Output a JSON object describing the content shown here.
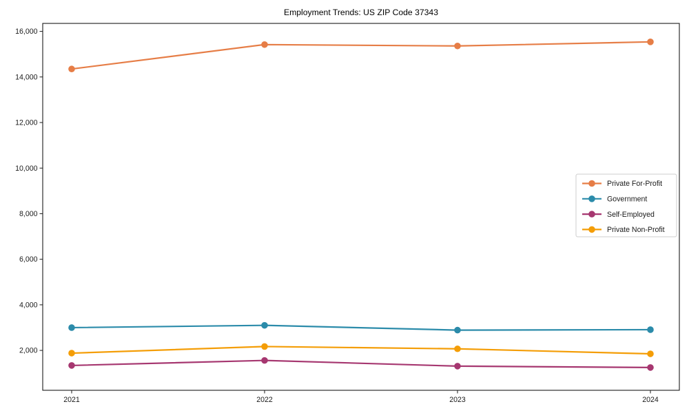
{
  "chart_data": {
    "type": "line",
    "title": "Employment Trends: US ZIP Code 37343",
    "xlabel": "",
    "ylabel": "",
    "x": [
      2021,
      2022,
      2023,
      2024
    ],
    "x_tick_labels": [
      "2021",
      "2022",
      "2023",
      "2024"
    ],
    "series": [
      {
        "name": "Private For-Profit",
        "color": "#e67d46",
        "values": [
          14350,
          15420,
          15360,
          15540
        ]
      },
      {
        "name": "Government",
        "color": "#2b8baa",
        "values": [
          3000,
          3100,
          2890,
          2910
        ]
      },
      {
        "name": "Self-Employed",
        "color": "#a63770",
        "values": [
          1340,
          1560,
          1310,
          1250
        ]
      },
      {
        "name": "Private Non-Profit",
        "color": "#f49d06",
        "values": [
          1880,
          2170,
          2070,
          1850
        ]
      }
    ],
    "yticks": [
      2000,
      4000,
      6000,
      8000,
      10000,
      12000,
      14000,
      16000
    ],
    "ytick_labels": [
      "2,000",
      "4,000",
      "6,000",
      "8,000",
      "10,000",
      "12,000",
      "14,000",
      "16,000"
    ],
    "ylim": [
      250,
      16350
    ],
    "xlim": [
      2020.85,
      2024.15
    ],
    "grid": false,
    "legend_position": "right-middle",
    "axis_color": "#1a1a1a",
    "legend_border_color": "#cccccc",
    "background_color": "#ffffff"
  }
}
